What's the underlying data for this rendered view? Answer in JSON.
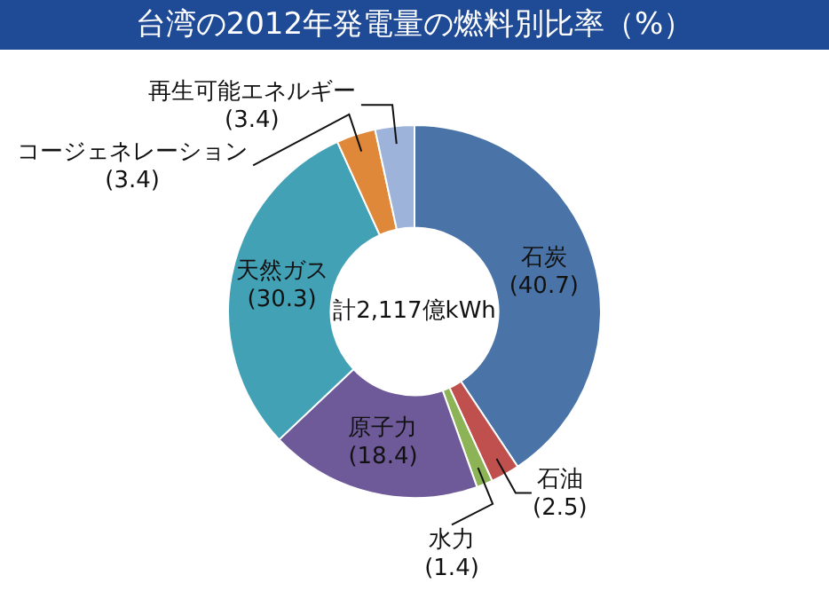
{
  "chart_data": {
    "type": "donut",
    "title": "台湾の2012年発電量の燃料別比率（%）",
    "categories": [
      "石炭",
      "石油",
      "水力",
      "原子力",
      "天然ガス",
      "コージェネレーション",
      "再生可能エネルギー"
    ],
    "values": [
      40.7,
      2.5,
      1.4,
      18.4,
      30.3,
      3.4,
      3.4
    ],
    "value_labels": [
      "(40.7)",
      "(2.5)",
      "(1.4)",
      "(18.4)",
      "(30.3)",
      "(3.4)",
      "(3.4)"
    ],
    "colors": [
      "#4a74a8",
      "#c0504d",
      "#8cb356",
      "#6e5a99",
      "#43a1b6",
      "#e0883a",
      "#9db3d9"
    ],
    "annotations": [
      "計2,117億kWh"
    ]
  }
}
